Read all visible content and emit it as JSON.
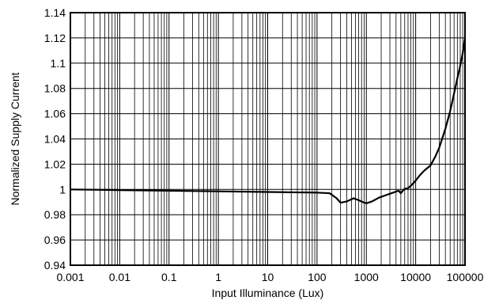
{
  "chart_data": {
    "type": "line",
    "title": "",
    "xlabel": "Input Illuminance (Lux)",
    "ylabel": "Normalized Supply Current",
    "x_scale": "log",
    "xlim": [
      0.001,
      100000
    ],
    "ylim": [
      0.94,
      1.14
    ],
    "grid": true,
    "x_ticks": [
      "0.001",
      "0.01",
      "0.1",
      "1",
      "10",
      "100",
      "1000",
      "10000",
      "100000"
    ],
    "y_ticks": [
      "0.94",
      "0.96",
      "0.98",
      "1",
      "1.02",
      "1.04",
      "1.06",
      "1.08",
      "1.1",
      "1.12",
      "1.14"
    ],
    "line_color": "#000000",
    "series": [
      {
        "x": [
          0.001,
          0.01,
          0.1,
          1,
          10,
          100,
          180,
          250,
          300,
          400,
          550,
          700,
          850,
          1000,
          1300,
          1800,
          2500,
          3500,
          4500,
          5000,
          5500,
          6000,
          7000,
          8000,
          9000,
          10000,
          12000,
          15000,
          20000,
          25000,
          30000,
          40000,
          50000,
          60000,
          70000,
          80000,
          90000,
          100000
        ],
        "y": [
          1.0,
          0.9995,
          0.999,
          0.9985,
          0.998,
          0.9975,
          0.997,
          0.993,
          0.9895,
          0.9905,
          0.993,
          0.9915,
          0.99,
          0.989,
          0.9905,
          0.9935,
          0.9955,
          0.9975,
          0.999,
          0.997,
          0.999,
          1.0005,
          1.001,
          1.003,
          1.005,
          1.007,
          1.011,
          1.015,
          1.019,
          1.026,
          1.033,
          1.048,
          1.062,
          1.076,
          1.088,
          1.098,
          1.108,
          1.12
        ]
      }
    ]
  }
}
